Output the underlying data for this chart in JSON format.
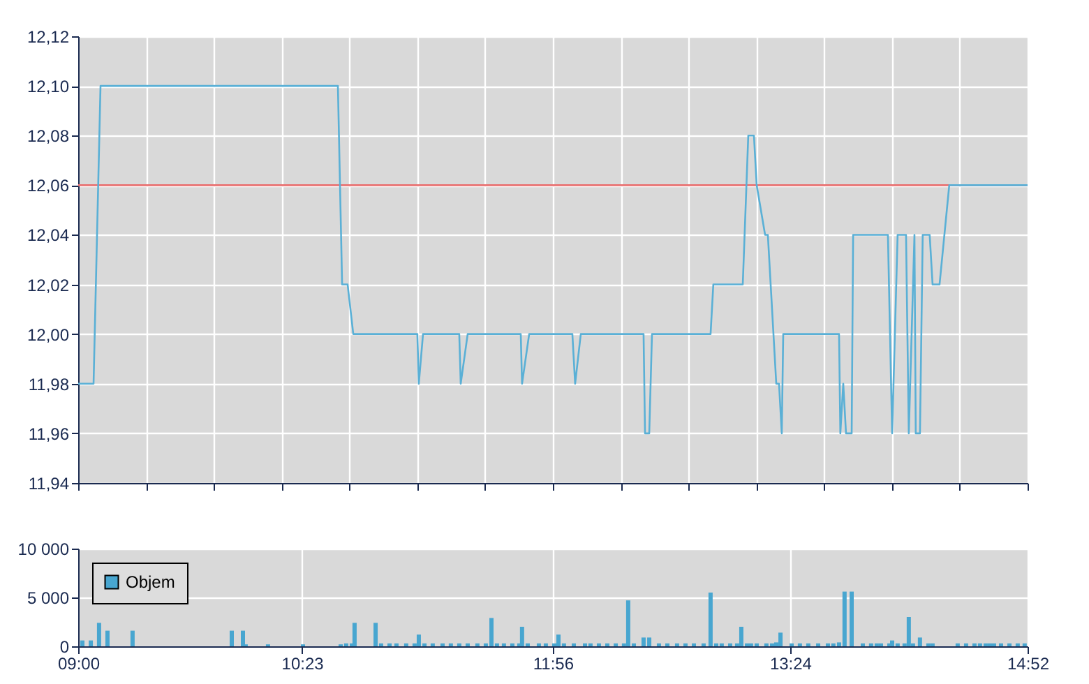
{
  "chart_data": [
    {
      "type": "line",
      "x": [
        9.0,
        9.095,
        9.138,
        10.605,
        10.631,
        10.665,
        10.7,
        11.096,
        11.105,
        11.131,
        11.355,
        11.364,
        11.407,
        11.735,
        11.743,
        11.787,
        12.054,
        12.071,
        12.106,
        12.494,
        12.503,
        12.529,
        12.546,
        12.908,
        12.925,
        13.107,
        13.141,
        13.176,
        13.193,
        13.245,
        13.262,
        13.314,
        13.331,
        13.348,
        13.357,
        13.702,
        13.71,
        13.728,
        13.745,
        13.78,
        13.789,
        14.004,
        14.03,
        14.064,
        14.116,
        14.133,
        14.168,
        14.176,
        14.202,
        14.219,
        14.262,
        14.28,
        14.323,
        14.383,
        14.867
      ],
      "series": [
        {
          "color": "#5ab0d6",
          "values": [
            11.98,
            11.98,
            12.1,
            12.1,
            12.02,
            12.02,
            12.0,
            12.0,
            11.98,
            12.0,
            12.0,
            11.98,
            12.0,
            12.0,
            11.98,
            12.0,
            12.0,
            11.98,
            12.0,
            12.0,
            11.96,
            11.96,
            12.0,
            12.0,
            12.02,
            12.02,
            12.08,
            12.08,
            12.06,
            12.04,
            12.04,
            11.98,
            11.98,
            11.96,
            12.0,
            12.0,
            11.96,
            11.98,
            11.96,
            11.96,
            12.04,
            12.04,
            11.96,
            12.04,
            12.04,
            11.96,
            12.04,
            11.96,
            11.96,
            12.04,
            12.04,
            12.02,
            12.02,
            12.06,
            12.06
          ]
        }
      ],
      "ref_lines": [
        {
          "axis": "y",
          "value": 12.06,
          "color": "#e87070"
        }
      ],
      "xlim": [
        9.0,
        14.867
      ],
      "xticks": [
        {
          "value": 9.0,
          "label": null
        },
        {
          "value": 9.419,
          "label": null
        },
        {
          "value": 9.838,
          "label": null
        },
        {
          "value": 10.257,
          "label": null
        },
        {
          "value": 10.676,
          "label": null
        },
        {
          "value": 11.095,
          "label": null
        },
        {
          "value": 11.514,
          "label": null
        },
        {
          "value": 11.933,
          "label": null
        },
        {
          "value": 12.352,
          "label": null
        },
        {
          "value": 12.771,
          "label": null
        },
        {
          "value": 13.19,
          "label": null
        },
        {
          "value": 13.61,
          "label": null
        },
        {
          "value": 14.029,
          "label": null
        },
        {
          "value": 14.448,
          "label": null
        },
        {
          "value": 14.867,
          "label": null
        }
      ],
      "ylim": [
        11.94,
        12.12
      ],
      "yticks": [
        {
          "value": 11.94,
          "label": "11,94"
        },
        {
          "value": 11.96,
          "label": "11,96"
        },
        {
          "value": 11.98,
          "label": "11,98"
        },
        {
          "value": 12.0,
          "label": "12,00"
        },
        {
          "value": 12.02,
          "label": "12,02"
        },
        {
          "value": 12.04,
          "label": "12,04"
        },
        {
          "value": 12.06,
          "label": "12,06"
        },
        {
          "value": 12.08,
          "label": "12,08"
        },
        {
          "value": 12.1,
          "label": "12,10"
        },
        {
          "value": 12.12,
          "label": "12,12"
        }
      ],
      "tick_labels": "y",
      "grid": true
    },
    {
      "type": "bar",
      "x": [
        9.026,
        9.078,
        9.129,
        9.181,
        9.336,
        9.949,
        10.018,
        10.035,
        10.173,
        10.389,
        10.622,
        10.656,
        10.691,
        10.708,
        10.838,
        10.872,
        10.924,
        10.967,
        11.027,
        11.079,
        11.105,
        11.14,
        11.191,
        11.252,
        11.303,
        11.355,
        11.407,
        11.467,
        11.519,
        11.554,
        11.588,
        11.631,
        11.683,
        11.726,
        11.743,
        11.778,
        11.847,
        11.89,
        11.942,
        11.968,
        12.002,
        12.063,
        12.132,
        12.166,
        12.218,
        12.27,
        12.322,
        12.373,
        12.399,
        12.434,
        12.494,
        12.529,
        12.589,
        12.641,
        12.701,
        12.753,
        12.805,
        12.865,
        12.908,
        12.943,
        12.977,
        13.029,
        13.072,
        13.098,
        13.133,
        13.158,
        13.193,
        13.253,
        13.288,
        13.314,
        13.34,
        13.409,
        13.46,
        13.512,
        13.573,
        13.633,
        13.667,
        13.702,
        13.736,
        13.78,
        13.849,
        13.9,
        13.935,
        13.961,
        14.013,
        14.03,
        14.064,
        14.107,
        14.133,
        14.159,
        14.202,
        14.254,
        14.28,
        14.435,
        14.487,
        14.539,
        14.573,
        14.608,
        14.634,
        14.66,
        14.703,
        14.755,
        14.806,
        14.849
      ],
      "series": [
        {
          "name": "Objem",
          "color": "#48a6d0",
          "values": [
            600,
            600,
            2400,
            1600,
            1600,
            1600,
            1600,
            200,
            200,
            200,
            200,
            300,
            300,
            2400,
            2400,
            300,
            300,
            300,
            300,
            300,
            1200,
            300,
            300,
            300,
            300,
            300,
            300,
            300,
            300,
            2900,
            300,
            300,
            300,
            300,
            2000,
            300,
            300,
            300,
            300,
            1200,
            300,
            300,
            300,
            300,
            300,
            300,
            300,
            300,
            4700,
            300,
            900,
            900,
            300,
            300,
            300,
            300,
            300,
            300,
            5500,
            300,
            300,
            300,
            300,
            2000,
            300,
            300,
            300,
            300,
            300,
            400,
            1400,
            300,
            300,
            300,
            300,
            300,
            300,
            400,
            5600,
            5600,
            300,
            300,
            300,
            300,
            300,
            600,
            300,
            300,
            3000,
            300,
            900,
            300,
            300,
            300,
            300,
            300,
            300,
            300,
            300,
            300,
            300,
            300,
            300,
            300
          ]
        }
      ],
      "xlim": [
        9.0,
        14.867
      ],
      "xticks": [
        {
          "value": 9.0,
          "label": "09:00"
        },
        {
          "value": 10.383,
          "label": "10:23"
        },
        {
          "value": 11.933,
          "label": "11:56"
        },
        {
          "value": 13.4,
          "label": "13:24"
        },
        {
          "value": 14.867,
          "label": "14:52"
        }
      ],
      "ylim": [
        0,
        10000
      ],
      "yticks": [
        {
          "value": 0,
          "label": "0"
        },
        {
          "value": 5000,
          "label": "5 000"
        },
        {
          "value": 10000,
          "label": "10 000"
        }
      ],
      "legend": "top left",
      "grid": true
    }
  ]
}
